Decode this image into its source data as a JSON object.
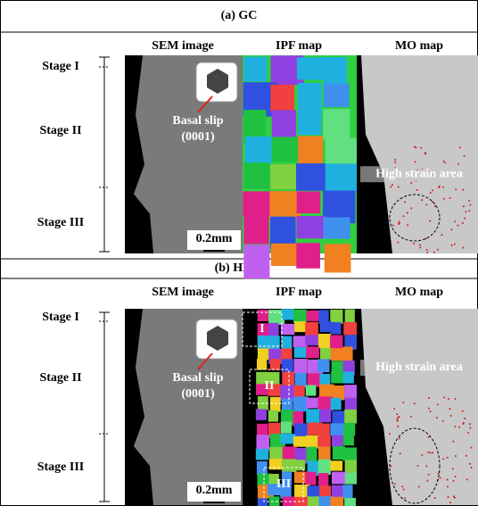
{
  "panels": [
    {
      "title": "(a) GC",
      "columns": [
        "SEM image",
        "IPF map",
        "MO map"
      ],
      "stages": [
        "Stage I",
        "Stage II",
        "Stage III"
      ],
      "annotations": {
        "slip": "Basal slip",
        "plane": "(0001)",
        "strain": "High strain area",
        "scale": "0.2mm"
      }
    },
    {
      "title": "(b) HMC",
      "columns": [
        "SEM image",
        "IPF map",
        "MO map"
      ],
      "stages": [
        "Stage I",
        "Stage II",
        "Stage III"
      ],
      "annotations": {
        "slip": "Basal slip",
        "plane": "(0001)",
        "strain": "High strain area",
        "scale": "0.2mm"
      },
      "regions": [
        "I",
        "II",
        "III"
      ]
    }
  ]
}
